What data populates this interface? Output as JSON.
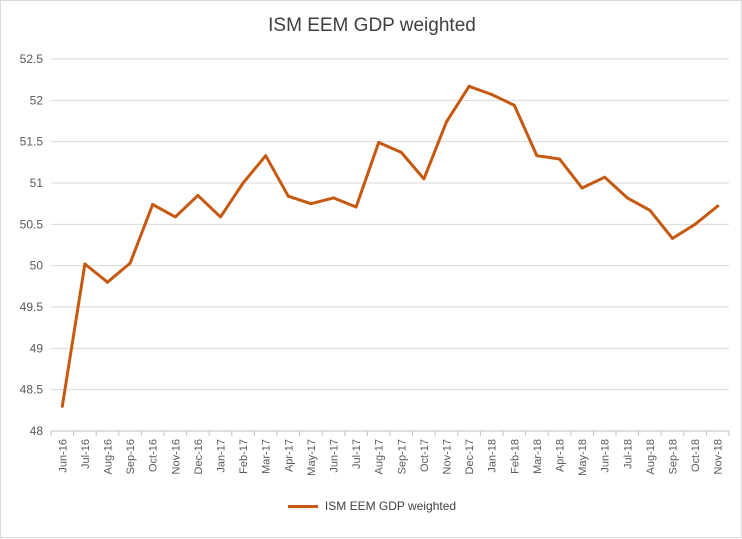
{
  "chart_data": {
    "type": "line",
    "title": "ISM EEM GDP weighted",
    "xlabel": "",
    "ylabel": "",
    "ylim": [
      48,
      52.5
    ],
    "yticks": [
      "48",
      "48.5",
      "49",
      "49.5",
      "50",
      "50.5",
      "51",
      "51.5",
      "52",
      "52.5"
    ],
    "categories": [
      "Jun-16",
      "Jul-16",
      "Aug-16",
      "Sep-16",
      "Oct-16",
      "Nov-16",
      "Dec-16",
      "Jan-17",
      "Feb-17",
      "Mar-17",
      "Apr-17",
      "May-17",
      "Jun-17",
      "Jul-17",
      "Aug-17",
      "Sep-17",
      "Oct-17",
      "Nov-17",
      "Dec-17",
      "Jan-18",
      "Feb-18",
      "Mar-18",
      "Apr-18",
      "May-18",
      "Jun-18",
      "Jul-18",
      "Aug-18",
      "Sep-18",
      "Oct-18",
      "Nov-18"
    ],
    "series": [
      {
        "name": "ISM EEM GDP weighted",
        "color": "#c65911",
        "values": [
          48.3,
          50.02,
          49.8,
          50.03,
          50.74,
          50.59,
          50.85,
          50.59,
          51.0,
          51.33,
          50.84,
          50.75,
          50.82,
          50.71,
          51.49,
          51.37,
          51.05,
          51.74,
          52.17,
          52.07,
          51.94,
          51.33,
          51.29,
          50.94,
          51.07,
          50.82,
          50.67,
          50.33,
          50.5,
          50.72
        ]
      }
    ],
    "grid": true,
    "legend_position": "bottom"
  }
}
